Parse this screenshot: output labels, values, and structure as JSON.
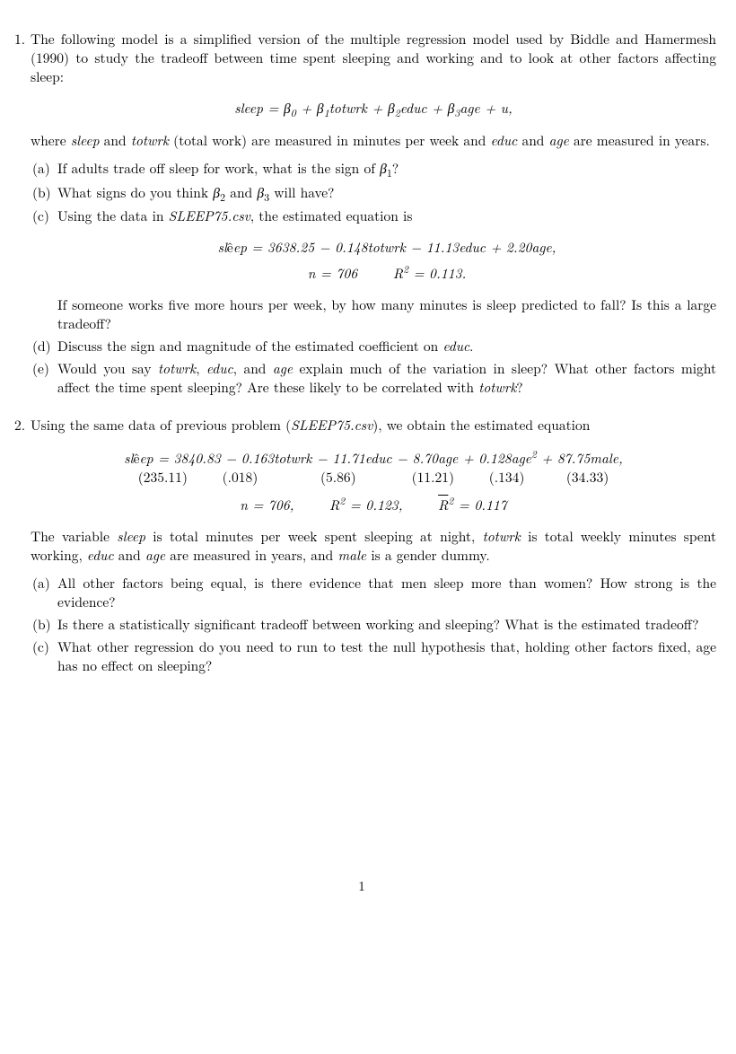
{
  "p1": {
    "num": "1.",
    "intro": "The following model is a simplified version of the multiple regression model used by Biddle and Hamermesh (1990) to study the tradeoff between time spent sleeping and working and to look at other factors affecting sleep:",
    "eq1_html": "<span class='it'>sleep</span> = <span class='it'>β</span><sub>0</sub> + <span class='it'>β</span><sub>1</sub><span class='it'>totwrk</span> + <span class='it'>β</span><sub>2</sub><span class='it'>educ</span> + <span class='it'>β</span><sub>3</sub><span class='it'>age</span> + <span class='it'>u</span>,",
    "where_html": "where <span class='it'>sleep</span> and <span class='it'>totwrk</span> (total work) are measured in minutes per week and <span class='it'>educ</span> and <span class='it'>age</span> are measured in years.",
    "a_html": "If adults trade off sleep for work, what is the sign of <span class='it'>β</span><sub>1</sub>?",
    "b_html": "What signs do you think <span class='it'>β</span><sub>2</sub> and <span class='it'>β</span><sub>3</sub> will have?",
    "c_html": "Using the data in <span class='it'>SLEEP75.csv</span>, the estimated equation is",
    "eq2_line1_html": "<span class='it'>sl<span class='rm'>ê</span>ep</span> = 3638.25 − 0.148<span class='it'>totwrk</span> − 11.13<span class='it'>educ</span> + 2.20<span class='it'>age</span>,",
    "eq2_line2_html": "<span class='it'>n</span> = 706&nbsp;&nbsp;&nbsp;&nbsp;&nbsp;<span class='it'>R</span><sup>2</sup> = 0.113.",
    "c_followup": "If someone works five more hours per week, by how many minutes is sleep predicted to fall? Is this a large tradeoff?",
    "d_html": "Discuss the sign and magnitude of the estimated coefficient on <span class='it'>educ</span>.",
    "e_html": "Would you say <span class='it'>totwrk</span>, <span class='it'>educ</span>, and <span class='it'>age</span> explain much of the variation in sleep? What other factors might affect the time spent sleeping? Are these likely to be correlated with <span class='it'>totwrk</span>?"
  },
  "p2": {
    "num": "2.",
    "intro_html": "Using the same data of previous problem (<span class='it'>SLEEP75.csv</span>), we obtain the estimated equation",
    "eq_line1_html": "<span class='it'>sl<span class='rm'>ê</span>ep</span> = 3840.83 − 0.163<span class='it'>totwrk</span> − 11.71<span class='it'>educ</span> − 8.70<span class='it'>age</span> + 0.128<span class='it'>age</span><sup>2</sup> + 87.75<span class='it'>male</span>,",
    "se_row_html": "(235.11)&nbsp;&nbsp;&nbsp;&nbsp;&nbsp;(.018)&nbsp;&nbsp;&nbsp;&nbsp;&nbsp;&nbsp;&nbsp;&nbsp;&nbsp;(5.86)&nbsp;&nbsp;&nbsp;&nbsp;&nbsp;&nbsp;&nbsp;&nbsp;(11.21)&nbsp;&nbsp;&nbsp;&nbsp;&nbsp;(.134)&nbsp;&nbsp;&nbsp;&nbsp;&nbsp;&nbsp;(34.33)",
    "eq_line3_html": "<span class='it'>n</span> = 706,&nbsp;&nbsp;&nbsp;&nbsp;&nbsp;<span class='it'>R</span><sup>2</sup> = 0.123,&nbsp;&nbsp;&nbsp;&nbsp;&nbsp;<span style='text-decoration:overline;'><span class='it'>R</span></span><sup>2</sup> = 0.117",
    "desc_html": "The variable <span class='it'>sleep</span> is total minutes per week spent sleeping at night, <span class='it'>totwrk</span> is total weekly minutes spent working, <span class='it'>educ</span> and <span class='it'>age</span> are measured in years, and <span class='it'>male</span> is a gender dummy.",
    "a": "All other factors being equal, is there evidence that men sleep more than women? How strong is the evidence?",
    "b": "Is there a statistically significant tradeoff between working and sleeping? What is the estimated tradeoff?",
    "c": "What other regression do you need to run to test the null hypothesis that, holding other factors fixed, age has no effect on sleeping?"
  },
  "labels": {
    "a": "(a)",
    "b": "(b)",
    "c": "(c)",
    "d": "(d)",
    "e": "(e)"
  },
  "page_number": "1"
}
